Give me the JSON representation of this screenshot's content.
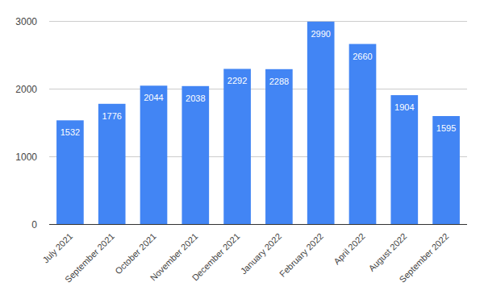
{
  "chart_data": {
    "type": "bar",
    "categories": [
      "July 2021",
      "September 2021",
      "October 2021",
      "November 2021",
      "December 2021",
      "January 2022",
      "February 2022",
      "April 2022",
      "August 2022",
      "September 2022"
    ],
    "values": [
      1532,
      1776,
      2044,
      2038,
      2292,
      2288,
      2990,
      2660,
      1904,
      1595
    ],
    "color": "#4285f4",
    "ylim": [
      0,
      3000
    ],
    "yticks": [
      0,
      1000,
      2000,
      3000
    ],
    "grid": true,
    "data_labels": true
  }
}
